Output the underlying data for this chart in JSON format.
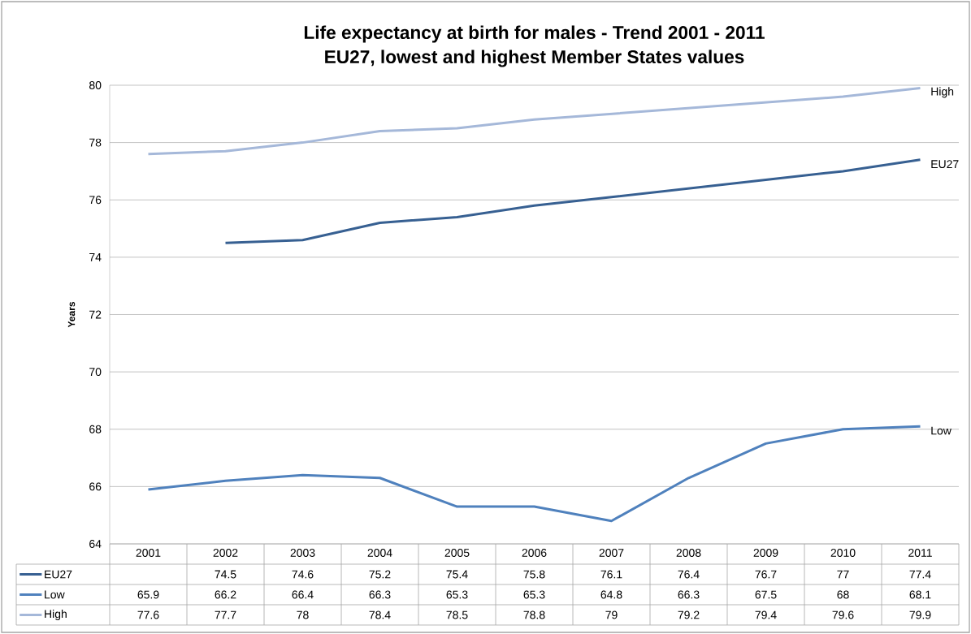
{
  "chart_data": {
    "type": "line",
    "title": "Life expectancy at birth for males - Trend 2001 - 2011",
    "subtitle": "EU27, lowest and highest Member States values",
    "ylabel": "Years",
    "categories": [
      "2001",
      "2002",
      "2003",
      "2004",
      "2005",
      "2006",
      "2007",
      "2008",
      "2009",
      "2010",
      "2011"
    ],
    "series": [
      {
        "name": "EU27",
        "color": "#376092",
        "values": [
          null,
          74.5,
          74.6,
          75.2,
          75.4,
          75.8,
          76.1,
          76.4,
          76.7,
          77,
          77.4
        ]
      },
      {
        "name": "Low",
        "color": "#4f81bd",
        "values": [
          65.9,
          66.2,
          66.4,
          66.3,
          65.3,
          65.3,
          64.8,
          66.3,
          67.5,
          68,
          68.1
        ]
      },
      {
        "name": "High",
        "color": "#a5b8d9",
        "values": [
          77.6,
          77.7,
          78,
          78.4,
          78.5,
          78.8,
          79,
          79.2,
          79.4,
          79.6,
          79.9
        ]
      }
    ],
    "ylim": [
      64,
      80
    ],
    "yticks": [
      64,
      66,
      68,
      70,
      72,
      74,
      76,
      78,
      80
    ],
    "grid": "y",
    "data_labels": true,
    "legend": "bottom left"
  }
}
